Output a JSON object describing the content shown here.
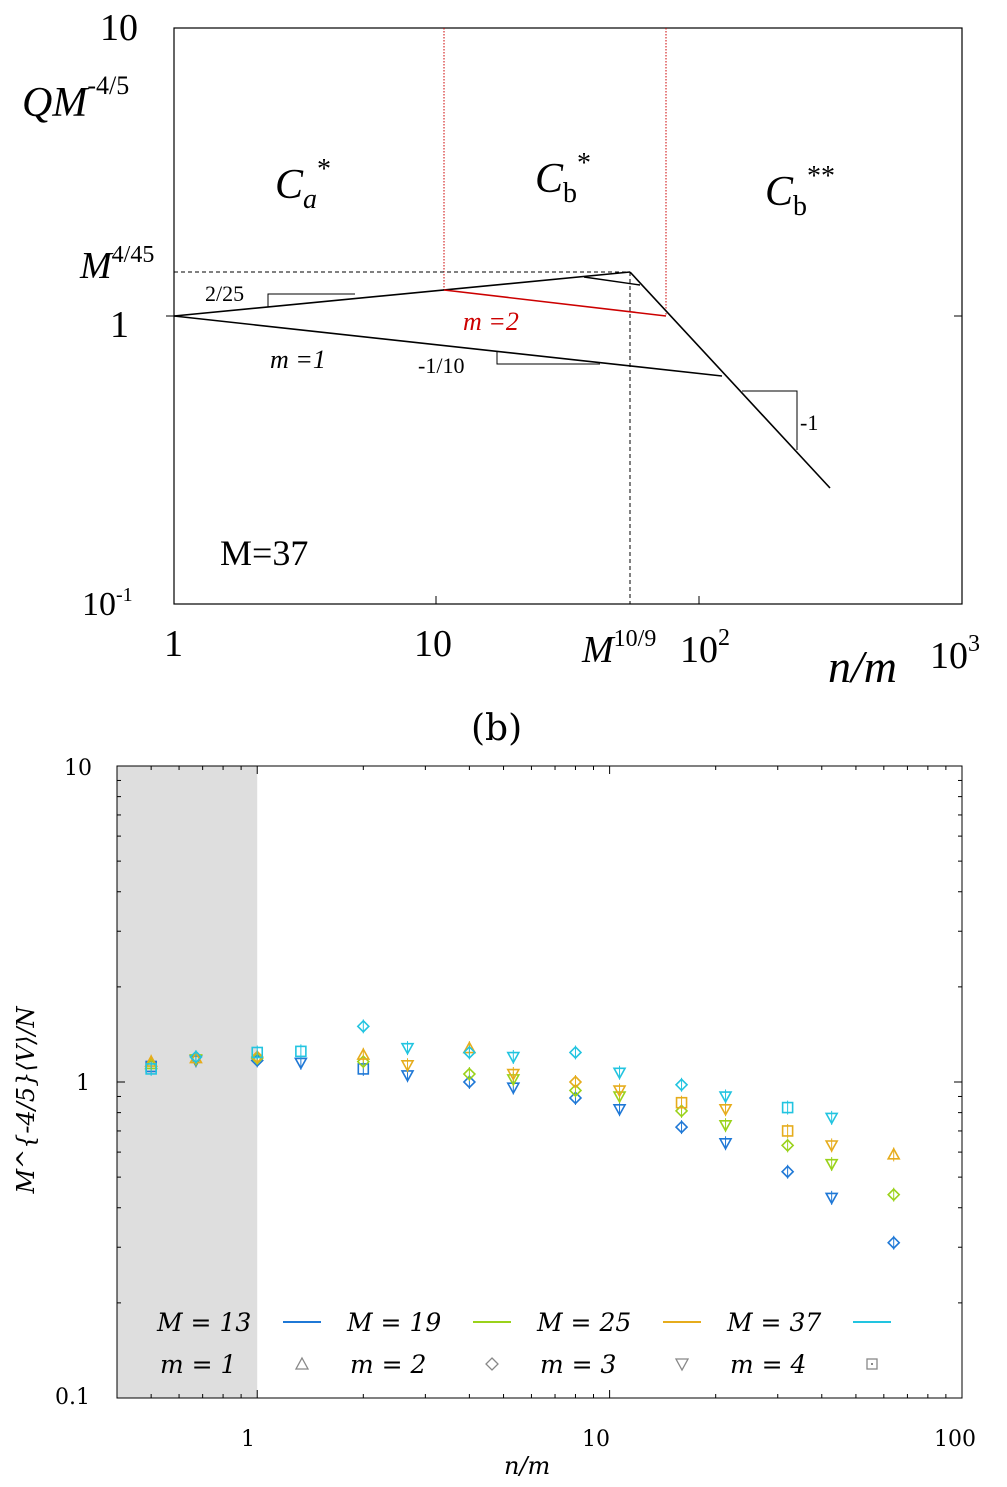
{
  "panel_a": {
    "y_axis_label": "QM",
    "y_axis_label_sup": "-4/5",
    "x_axis_label": "n/m",
    "y_ticks": {
      "top_mantissa": "10",
      "mid": "1",
      "bottom_mantissa": "10",
      "bottom_exp": "-1"
    },
    "x_ticks": {
      "t1": "1",
      "t10": "10",
      "t100_mantissa": "10",
      "t100_exp": "2",
      "t1000_mantissa": "10",
      "t1000_exp": "3"
    },
    "regions": [
      {
        "main": "C",
        "sub": "a",
        "sup": "*"
      },
      {
        "main": "C",
        "sub": "b",
        "sup": "*"
      },
      {
        "main": "C",
        "sub": "b",
        "sup": "**"
      }
    ],
    "y_mark": {
      "main": "M",
      "sup": "4/45"
    },
    "x_mark": {
      "main": "M",
      "sup": "10/9"
    },
    "slopes": {
      "up": "2/25",
      "down": "-1/10",
      "steep": "-1"
    },
    "line_labels": {
      "m1": "m =1",
      "m2": "m =2"
    },
    "mass_label": "M=37",
    "colors": {
      "black": "#000000",
      "red": "#cc0000"
    }
  },
  "panel_b": {
    "panel_label": "(b)",
    "chart_data": {
      "type": "scatter",
      "x_scale": "log",
      "y_scale": "log",
      "xlim": [
        0.4,
        100
      ],
      "ylim": [
        0.1,
        10
      ],
      "xlabel": "n/m",
      "ylabel": "M^{-4/5}⟨V⟩/N",
      "x_tick_labels": [
        "1",
        "10",
        "100"
      ],
      "y_tick_labels": [
        "0.1",
        "1",
        "10"
      ],
      "shaded_region": [
        0.4,
        1.0
      ],
      "color_legend": [
        {
          "label": "M = 13",
          "color": "#1f78d6"
        },
        {
          "label": "M = 19",
          "color": "#9ad21a"
        },
        {
          "label": "M = 25",
          "color": "#e6ac1c"
        },
        {
          "label": "M = 37",
          "color": "#22c4e0"
        }
      ],
      "marker_legend": [
        {
          "label": "m = 1",
          "marker": "triangle-up"
        },
        {
          "label": "m = 2",
          "marker": "diamond"
        },
        {
          "label": "m = 3",
          "marker": "triangle-down"
        },
        {
          "label": "m = 4",
          "marker": "square"
        }
      ],
      "series": [
        {
          "M": 13,
          "color": "#1f78d6",
          "points": [
            {
              "x": 0.5,
              "y": 1.12,
              "mk": "square"
            },
            {
              "x": 0.67,
              "y": 1.17,
              "mk": "triangle-down"
            },
            {
              "x": 1.0,
              "y": 1.17,
              "mk": "diamond"
            },
            {
              "x": 1.33,
              "y": 1.15,
              "mk": "triangle-down"
            },
            {
              "x": 2.0,
              "y": 1.1,
              "mk": "square"
            },
            {
              "x": 2.67,
              "y": 1.05,
              "mk": "triangle-down"
            },
            {
              "x": 4.0,
              "y": 1.0,
              "mk": "diamond"
            },
            {
              "x": 5.33,
              "y": 0.96,
              "mk": "triangle-down"
            },
            {
              "x": 8.0,
              "y": 0.89,
              "mk": "diamond"
            },
            {
              "x": 10.67,
              "y": 0.82,
              "mk": "triangle-down"
            },
            {
              "x": 16.0,
              "y": 0.72,
              "mk": "diamond"
            },
            {
              "x": 21.33,
              "y": 0.64,
              "mk": "triangle-down"
            },
            {
              "x": 32.0,
              "y": 0.52,
              "mk": "diamond"
            },
            {
              "x": 42.67,
              "y": 0.43,
              "mk": "triangle-down"
            },
            {
              "x": 64.0,
              "y": 0.31,
              "mk": "diamond"
            }
          ]
        },
        {
          "M": 19,
          "color": "#9ad21a",
          "points": [
            {
              "x": 0.5,
              "y": 1.14,
              "mk": "triangle-up"
            },
            {
              "x": 0.67,
              "y": 1.18,
              "mk": "triangle-down"
            },
            {
              "x": 1.0,
              "y": 1.19,
              "mk": "diamond"
            },
            {
              "x": 2.0,
              "y": 1.16,
              "mk": "diamond"
            },
            {
              "x": 4.0,
              "y": 1.06,
              "mk": "diamond"
            },
            {
              "x": 5.33,
              "y": 1.02,
              "mk": "triangle-down"
            },
            {
              "x": 8.0,
              "y": 0.94,
              "mk": "diamond"
            },
            {
              "x": 10.67,
              "y": 0.9,
              "mk": "triangle-down"
            },
            {
              "x": 16.0,
              "y": 0.81,
              "mk": "diamond"
            },
            {
              "x": 21.33,
              "y": 0.73,
              "mk": "triangle-down"
            },
            {
              "x": 32.0,
              "y": 0.63,
              "mk": "diamond"
            },
            {
              "x": 42.67,
              "y": 0.55,
              "mk": "triangle-down"
            },
            {
              "x": 64.0,
              "y": 0.44,
              "mk": "diamond"
            }
          ]
        },
        {
          "M": 25,
          "color": "#e6ac1c",
          "points": [
            {
              "x": 0.5,
              "y": 1.16,
              "mk": "triangle-up"
            },
            {
              "x": 0.67,
              "y": 1.19,
              "mk": "triangle-up"
            },
            {
              "x": 1.0,
              "y": 1.2,
              "mk": "diamond"
            },
            {
              "x": 2.0,
              "y": 1.22,
              "mk": "triangle-up"
            },
            {
              "x": 2.67,
              "y": 1.13,
              "mk": "triangle-down"
            },
            {
              "x": 4.0,
              "y": 1.28,
              "mk": "triangle-up"
            },
            {
              "x": 5.33,
              "y": 1.06,
              "mk": "triangle-down"
            },
            {
              "x": 8.0,
              "y": 1.0,
              "mk": "diamond"
            },
            {
              "x": 10.67,
              "y": 0.94,
              "mk": "triangle-down"
            },
            {
              "x": 16.0,
              "y": 0.86,
              "mk": "square"
            },
            {
              "x": 21.33,
              "y": 0.82,
              "mk": "triangle-down"
            },
            {
              "x": 32.0,
              "y": 0.7,
              "mk": "square"
            },
            {
              "x": 42.67,
              "y": 0.63,
              "mk": "triangle-down"
            },
            {
              "x": 64.0,
              "y": 0.59,
              "mk": "triangle-up"
            }
          ]
        },
        {
          "M": 37,
          "color": "#22c4e0",
          "points": [
            {
              "x": 0.5,
              "y": 1.1,
              "mk": "square"
            },
            {
              "x": 0.67,
              "y": 1.2,
              "mk": "diamond"
            },
            {
              "x": 1.0,
              "y": 1.24,
              "mk": "square"
            },
            {
              "x": 1.33,
              "y": 1.25,
              "mk": "square"
            },
            {
              "x": 2.0,
              "y": 1.5,
              "mk": "diamond"
            },
            {
              "x": 2.67,
              "y": 1.28,
              "mk": "triangle-down"
            },
            {
              "x": 4.0,
              "y": 1.24,
              "mk": "diamond"
            },
            {
              "x": 5.33,
              "y": 1.2,
              "mk": "triangle-down"
            },
            {
              "x": 8.0,
              "y": 1.24,
              "mk": "diamond"
            },
            {
              "x": 10.67,
              "y": 1.07,
              "mk": "triangle-down"
            },
            {
              "x": 16.0,
              "y": 0.98,
              "mk": "diamond"
            },
            {
              "x": 21.33,
              "y": 0.9,
              "mk": "triangle-down"
            },
            {
              "x": 32.0,
              "y": 0.83,
              "mk": "square"
            },
            {
              "x": 42.67,
              "y": 0.77,
              "mk": "triangle-down"
            }
          ]
        }
      ]
    }
  }
}
